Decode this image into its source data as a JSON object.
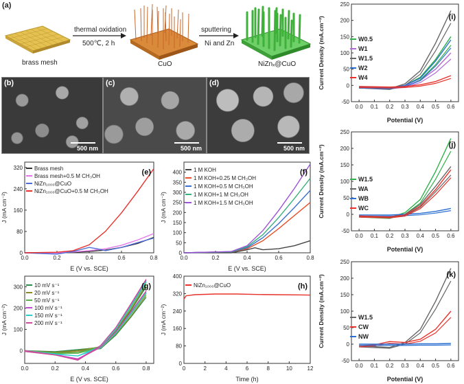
{
  "panel_a": {
    "letter": "(a)",
    "step1_label": "brass mesh",
    "arrow1_top": "thermal oxidation",
    "arrow1_bottom": "500℃, 2 h",
    "step2_label": "CuO",
    "arrow2_top": "sputtering",
    "arrow2_bottom": "Ni and Zn",
    "step3_label": "NiZnₓ@CuO"
  },
  "sem": {
    "b_letter": "(b)",
    "c_letter": "(c)",
    "d_letter": "(d)",
    "scale_text": "500 nm"
  },
  "chart_data": [
    {
      "id": "e",
      "type": "line",
      "letter": "(e)",
      "xlabel": "E (V vs. SCE)",
      "ylabel": "J (mA cm⁻²)",
      "xlim": [
        0.0,
        0.8
      ],
      "ylim": [
        0,
        340
      ],
      "xticks": [
        0.0,
        0.2,
        0.4,
        0.6,
        0.8
      ],
      "yticks": [
        0,
        80,
        160,
        240,
        320
      ],
      "legend": "top-left",
      "series": [
        {
          "name": "Brass mesh",
          "color": "#333333",
          "x": [
            0,
            0.2,
            0.3,
            0.4,
            0.5,
            0.6,
            0.7,
            0.8
          ],
          "y": [
            0,
            0,
            2,
            5,
            10,
            20,
            35,
            58
          ]
        },
        {
          "name": "Brass mesh+0.5 M CH₃OH",
          "color": "#e377e8",
          "x": [
            0,
            0.2,
            0.3,
            0.4,
            0.5,
            0.6,
            0.7,
            0.8
          ],
          "y": [
            0,
            0,
            3,
            8,
            15,
            28,
            48,
            72
          ]
        },
        {
          "name": "NiZn₁₀₀₀@CuO",
          "color": "#4f6bd8",
          "x": [
            0,
            0.2,
            0.3,
            0.4,
            0.45,
            0.5,
            0.6,
            0.7,
            0.8
          ],
          "y": [
            0,
            -5,
            5,
            20,
            15,
            8,
            20,
            38,
            55
          ]
        },
        {
          "name": "NiZn₁₀₀₀@CuO+0.5 M CH₃OH",
          "color": "#e8312a",
          "x": [
            0,
            0.2,
            0.3,
            0.4,
            0.5,
            0.6,
            0.7,
            0.8
          ],
          "y": [
            0,
            2,
            8,
            30,
            80,
            150,
            230,
            315
          ]
        }
      ]
    },
    {
      "id": "f",
      "type": "line",
      "letter": "(f)",
      "xlabel": "E (V vs. SCE)",
      "ylabel": "J (mA cm⁻²)",
      "xlim": [
        0.0,
        0.8
      ],
      "ylim": [
        0,
        450
      ],
      "xticks": [
        0.0,
        0.2,
        0.4,
        0.6,
        0.8
      ],
      "yticks": [
        0,
        50,
        100,
        150,
        200,
        250,
        300,
        350,
        400
      ],
      "legend": "top-left",
      "series": [
        {
          "name": "1 M KOH",
          "color": "#444444",
          "x": [
            0,
            0.3,
            0.4,
            0.45,
            0.5,
            0.6,
            0.7,
            0.8
          ],
          "y": [
            0,
            0,
            15,
            25,
            15,
            20,
            35,
            60
          ]
        },
        {
          "name": "1 M KOH+0.25 M CH₃OH",
          "color": "#e8502a",
          "x": [
            0,
            0.3,
            0.4,
            0.5,
            0.6,
            0.7,
            0.8
          ],
          "y": [
            0,
            5,
            20,
            60,
            120,
            185,
            250
          ]
        },
        {
          "name": "1 M KOH+0.5 M CH₃OH",
          "color": "#3a6fd0",
          "x": [
            0,
            0.3,
            0.4,
            0.5,
            0.6,
            0.7,
            0.8
          ],
          "y": [
            0,
            5,
            25,
            75,
            145,
            225,
            310
          ]
        },
        {
          "name": "1 M KOH+1 M CH₃OH",
          "color": "#35b07a",
          "x": [
            0,
            0.3,
            0.4,
            0.5,
            0.6,
            0.7,
            0.8
          ],
          "y": [
            0,
            5,
            30,
            90,
            175,
            270,
            370
          ]
        },
        {
          "name": "1 M KOH+1.5 M CH₃OH",
          "color": "#9b52d6",
          "x": [
            0,
            0.3,
            0.4,
            0.5,
            0.6,
            0.7,
            0.8
          ],
          "y": [
            0,
            6,
            35,
            110,
            210,
            320,
            440
          ]
        }
      ]
    },
    {
      "id": "g",
      "type": "line",
      "letter": "(g)",
      "xlabel": "E (V vs. SCE)",
      "ylabel": "J (mA cm⁻²)",
      "xlim": [
        0.0,
        0.85
      ],
      "ylim": [
        -60,
        350
      ],
      "xticks": [
        0.0,
        0.2,
        0.4,
        0.6,
        0.8
      ],
      "yticks": [
        0,
        100,
        200,
        300
      ],
      "legend": "top-left",
      "series": [
        {
          "name": "10 mV s⁻¹",
          "color": "#2a8a4a",
          "x": [
            0,
            0.2,
            0.35,
            0.5,
            0.6,
            0.7,
            0.8
          ],
          "y": [
            0,
            -5,
            5,
            15,
            90,
            190,
            300
          ]
        },
        {
          "name": "20 mV s⁻¹",
          "color": "#8a8a2a",
          "x": [
            0,
            0.2,
            0.35,
            0.5,
            0.6,
            0.7,
            0.8
          ],
          "y": [
            0,
            -8,
            0,
            18,
            95,
            195,
            310
          ]
        },
        {
          "name": "50 mV s⁻¹",
          "color": "#5ab04a",
          "x": [
            0,
            0.2,
            0.35,
            0.5,
            0.6,
            0.7,
            0.8
          ],
          "y": [
            0,
            -12,
            -10,
            20,
            100,
            205,
            320
          ]
        },
        {
          "name": "100 mV s⁻¹",
          "color": "#c04ad0",
          "x": [
            0,
            0.2,
            0.35,
            0.5,
            0.6,
            0.7,
            0.8
          ],
          "y": [
            0,
            -18,
            -40,
            22,
            105,
            215,
            330
          ]
        },
        {
          "name": "150 mV s⁻¹",
          "color": "#2ad0c8",
          "x": [
            0,
            0.2,
            0.35,
            0.5,
            0.6,
            0.7,
            0.8
          ],
          "y": [
            0,
            -15,
            -25,
            20,
            100,
            210,
            325
          ]
        },
        {
          "name": "200 mV s⁻¹",
          "color": "#d04a9a",
          "x": [
            0,
            0.2,
            0.35,
            0.5,
            0.6,
            0.7,
            0.8
          ],
          "y": [
            0,
            -20,
            -45,
            24,
            108,
            220,
            335
          ]
        }
      ]
    },
    {
      "id": "h",
      "type": "line",
      "letter": "(h)",
      "xlabel": "Time (h)",
      "ylabel": "J (mA cm⁻²)",
      "xlim": [
        0,
        12
      ],
      "ylim": [
        0,
        400
      ],
      "xticks": [
        0,
        2,
        4,
        6,
        8,
        10,
        12
      ],
      "yticks": [
        0,
        80,
        160,
        240,
        320,
        400
      ],
      "legend": "top-left",
      "series": [
        {
          "name": "NiZn₁₀₀₀@CuO",
          "color": "#e8312a",
          "x": [
            0,
            0.2,
            1,
            3,
            5,
            7,
            9,
            11,
            12
          ],
          "y": [
            295,
            310,
            315,
            318,
            318,
            316,
            315,
            314,
            313
          ]
        }
      ]
    },
    {
      "id": "i",
      "type": "line",
      "letter": "(i)",
      "xlabel": "Potential (V)",
      "ylabel": "Current Density (mA.cm⁻²)",
      "xlim": [
        -0.05,
        0.65
      ],
      "ylim": [
        -50,
        250
      ],
      "xticks": [
        0.0,
        0.1,
        0.2,
        0.3,
        0.4,
        0.5,
        0.6
      ],
      "yticks": [
        -50,
        0,
        50,
        100,
        150,
        200,
        250
      ],
      "legend": "left",
      "series": [
        {
          "name": "W0.5",
          "color": "#2fb04a",
          "x": [
            0,
            0.2,
            0.3,
            0.4,
            0.5,
            0.6
          ],
          "y": [
            -5,
            -8,
            0,
            25,
            80,
            150
          ]
        },
        {
          "name": "W1",
          "color": "#b06ad6",
          "x": [
            0,
            0.2,
            0.3,
            0.4,
            0.5,
            0.6
          ],
          "y": [
            -5,
            -8,
            -2,
            15,
            50,
            100
          ]
        },
        {
          "name": "W1.5",
          "color": "#666666",
          "x": [
            0,
            0.2,
            0.3,
            0.4,
            0.5,
            0.6
          ],
          "y": [
            -5,
            -10,
            5,
            45,
            130,
            230
          ]
        },
        {
          "name": "W2",
          "color": "#2a6fd0",
          "x": [
            0,
            0.2,
            0.3,
            0.4,
            0.5,
            0.6
          ],
          "y": [
            -5,
            -8,
            0,
            22,
            75,
            140
          ]
        },
        {
          "name": "W4",
          "color": "#e8312a",
          "x": [
            0,
            0.2,
            0.3,
            0.4,
            0.5,
            0.6
          ],
          "y": [
            -3,
            -5,
            -3,
            2,
            12,
            30
          ]
        }
      ]
    },
    {
      "id": "j",
      "type": "line",
      "letter": "(j)",
      "xlabel": "Potential (V)",
      "ylabel": "Current Density (mA.cm⁻²)",
      "xlim": [
        -0.05,
        0.65
      ],
      "ylim": [
        -50,
        250
      ],
      "xticks": [
        0.0,
        0.1,
        0.2,
        0.3,
        0.4,
        0.5,
        0.6
      ],
      "yticks": [
        -50,
        0,
        50,
        100,
        150,
        200,
        250
      ],
      "legend": "left",
      "series": [
        {
          "name": "W1.5",
          "color": "#2fb04a",
          "x": [
            0,
            0.2,
            0.3,
            0.4,
            0.5,
            0.6
          ],
          "y": [
            -5,
            -10,
            5,
            45,
            130,
            230
          ]
        },
        {
          "name": "WA",
          "color": "#666666",
          "x": [
            0,
            0.2,
            0.3,
            0.4,
            0.5,
            0.6
          ],
          "y": [
            -5,
            -8,
            0,
            30,
            85,
            145
          ]
        },
        {
          "name": "WB",
          "color": "#2a6fd0",
          "x": [
            0,
            0.2,
            0.3,
            0.4,
            0.5,
            0.6
          ],
          "y": [
            -2,
            -2,
            0,
            3,
            9,
            18
          ]
        },
        {
          "name": "WC",
          "color": "#e8312a",
          "x": [
            0,
            0.2,
            0.3,
            0.4,
            0.5,
            0.6
          ],
          "y": [
            -5,
            -8,
            -2,
            25,
            75,
            135
          ]
        }
      ]
    },
    {
      "id": "k",
      "type": "line",
      "letter": "(k)",
      "xlabel": "Potential (V)",
      "ylabel": "Current Density (mA.cm⁻²)",
      "xlim": [
        -0.05,
        0.65
      ],
      "ylim": [
        -50,
        250
      ],
      "xticks": [
        0.0,
        0.1,
        0.2,
        0.3,
        0.4,
        0.5,
        0.6
      ],
      "yticks": [
        -50,
        0,
        50,
        100,
        150,
        200,
        250
      ],
      "legend": "left",
      "series": [
        {
          "name": "W1.5",
          "color": "#666666",
          "x": [
            0,
            0.2,
            0.3,
            0.4,
            0.5,
            0.6
          ],
          "y": [
            -5,
            -10,
            5,
            45,
            130,
            230
          ]
        },
        {
          "name": "CW",
          "color": "#e8312a",
          "x": [
            0,
            0.1,
            0.2,
            0.3,
            0.4,
            0.5,
            0.6
          ],
          "y": [
            -5,
            -2,
            8,
            5,
            15,
            45,
            100
          ]
        },
        {
          "name": "NW",
          "color": "#2a6fd0",
          "x": [
            0,
            0.2,
            0.3,
            0.4,
            0.5,
            0.6
          ],
          "y": [
            0,
            0,
            0,
            1,
            1,
            2
          ]
        }
      ]
    }
  ]
}
